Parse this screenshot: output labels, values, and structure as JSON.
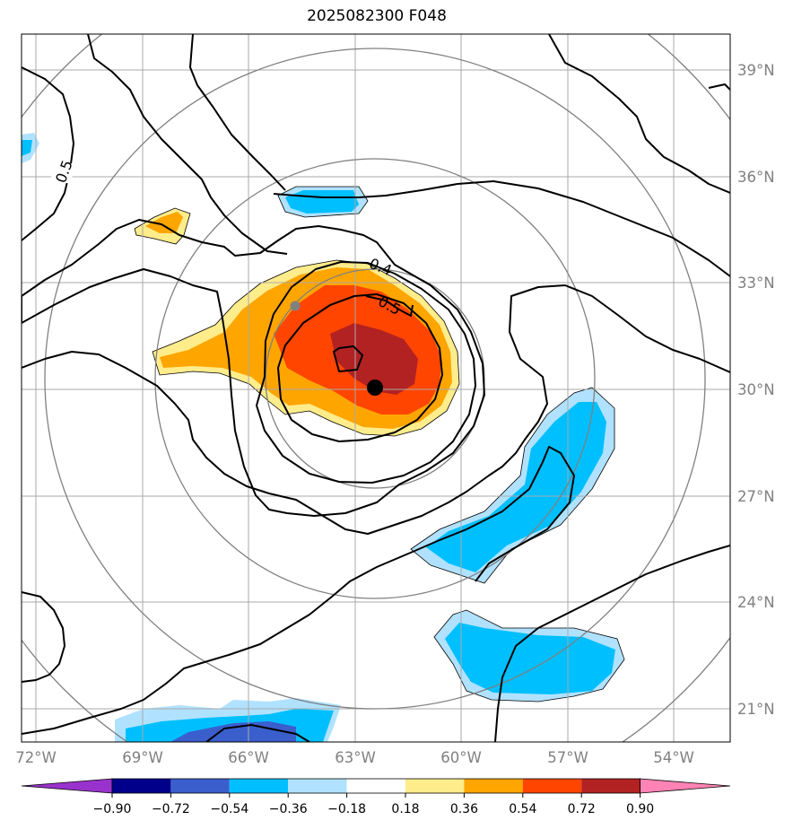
{
  "title": "2025082300 F048",
  "map": {
    "lat_labels": [
      "39°N",
      "36°N",
      "33°N",
      "30°N",
      "27°N",
      "24°N",
      "21°N"
    ],
    "lon_labels": [
      "72°W",
      "69°W",
      "66°W",
      "63°W",
      "60°W",
      "57°W",
      "54°W"
    ],
    "contour_labels": [
      "0.5",
      "0.4",
      "0.5"
    ],
    "center": {
      "lon": "62.5°W",
      "lat": "30°N"
    }
  },
  "colorbar": {
    "ticks": [
      "−0.90",
      "−0.72",
      "−0.54",
      "−0.36",
      "−0.18",
      "0.18",
      "0.36",
      "0.54",
      "0.72",
      "0.90"
    ],
    "colors": [
      "#9932cc",
      "#00008b",
      "#3a5fcd",
      "#00bfff",
      "#b0e2ff",
      "#ffffff",
      "#ffec8b",
      "#ffa500",
      "#ff4500",
      "#b22222",
      "#ff83b4"
    ]
  }
}
